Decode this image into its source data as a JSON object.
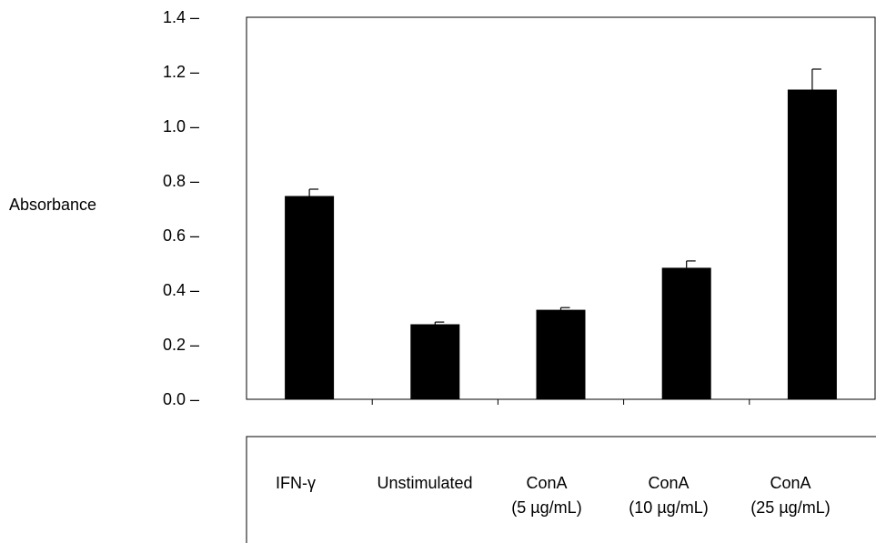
{
  "chart_data": {
    "type": "bar",
    "title": "",
    "xlabel": "",
    "ylabel": "Absorbance",
    "ylim": [
      0,
      1.4
    ],
    "yticks": [
      "0.0",
      "0.2",
      "0.4",
      "0.6",
      "0.8",
      "1.0",
      "1.2",
      "1.4"
    ],
    "grid": false,
    "categories": [
      [
        "IFN-γ"
      ],
      [
        "Unstimulated"
      ],
      [
        "ConA",
        "(5 µg/mL)"
      ],
      [
        "ConA",
        "(10 µg/mL)"
      ],
      [
        "ConA",
        "(25 µg/mL)"
      ]
    ],
    "values": [
      0.745,
      0.275,
      0.328,
      0.482,
      1.135
    ],
    "errors": [
      0.025,
      0.008,
      0.008,
      0.025,
      0.075
    ],
    "bar_color": "#000000"
  }
}
